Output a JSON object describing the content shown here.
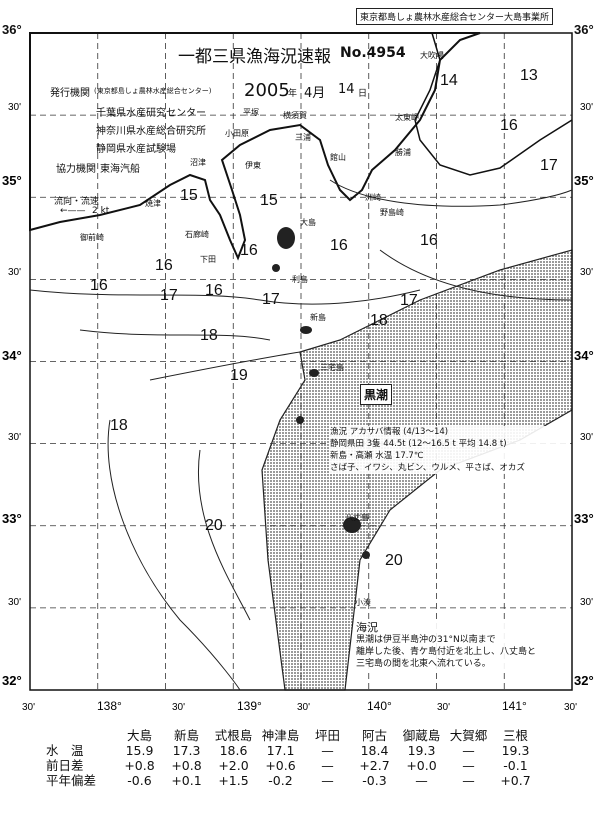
{
  "header": {
    "title": "一都三県漁海況速報",
    "issue_no": "No.4954",
    "year": "2005",
    "year_unit": "年",
    "month": "4月",
    "day": "14",
    "day_unit": "日",
    "corner_label": "東京都島しょ農林水産総合センター大島事業所"
  },
  "publishers": {
    "label": "発行機関",
    "items": [
      "(東京都島しょ農林水産総合センター)",
      "千葉県水産研究センター",
      "神奈川県水産総合研究所",
      "静岡県水産試験場"
    ],
    "cooperation_label": "協力機関",
    "cooperation": "東海汽船"
  },
  "legend": {
    "current": "流向・流速",
    "speed": "2 kt"
  },
  "axes": {
    "lat_labels": [
      "36°",
      "30'",
      "35°",
      "30'",
      "34°",
      "30'",
      "33°",
      "30'",
      "32°"
    ],
    "lon_labels": [
      "30'",
      "138°",
      "30'",
      "139°",
      "30'",
      "140°",
      "30'",
      "141°",
      "30'"
    ]
  },
  "places": [
    "大吹場",
    "小田原",
    "平塚",
    "横須賀",
    "三浦",
    "館山",
    "伊東",
    "沼津",
    "焼津",
    "御前崎",
    "石廊崎",
    "下田",
    "大島",
    "利島",
    "新島",
    "三宅島",
    "八丈島",
    "小湊",
    "勝浦",
    "太東岬",
    "洲崎",
    "野島崎"
  ],
  "kuroshio_label": "黒潮",
  "isotherms": [
    "13",
    "14",
    "15",
    "16",
    "17",
    "18",
    "19",
    "20"
  ],
  "fishing_info": {
    "title": "漁況 アカサバ情報 (4/13〜14)",
    "lines": [
      "静岡県田 3隻 44.5t (12〜16.5 t 平均 14.8 t)",
      "新島・高瀬 水温 17.7℃",
      "さば子、イワシ、丸ビン、ウルメ、平さば、オカズ"
    ]
  },
  "sea_conditions": {
    "title": "海況",
    "lines": [
      "黒潮は伊豆半島沖の31°N以南まで",
      "離岸した後、青ケ島付近を北上し、八丈島と",
      "三宅島の間を北東へ流れている。"
    ]
  },
  "table": {
    "columns": [
      "大島",
      "新島",
      "式根島",
      "神津島",
      "坪田",
      "阿古",
      "御蔵島",
      "大賀郷",
      "三根"
    ],
    "rows": [
      {
        "label": "水　温",
        "values": [
          "15.9",
          "17.3",
          "18.6",
          "17.1",
          "—",
          "18.4",
          "19.3",
          "—",
          "19.3"
        ]
      },
      {
        "label": "前日差",
        "values": [
          "+0.8",
          "+0.8",
          "+2.0",
          "+0.6",
          "—",
          "+2.7",
          "+0.0",
          "—",
          "-0.1"
        ]
      },
      {
        "label": "平年偏差",
        "values": [
          "-0.6",
          "+0.1",
          "+1.5",
          "-0.2",
          "—",
          "-0.3",
          "—",
          "—",
          "+0.7"
        ]
      }
    ]
  },
  "colors": {
    "ink": "#111111",
    "kuroshio_fill": "#9a9a9a"
  }
}
